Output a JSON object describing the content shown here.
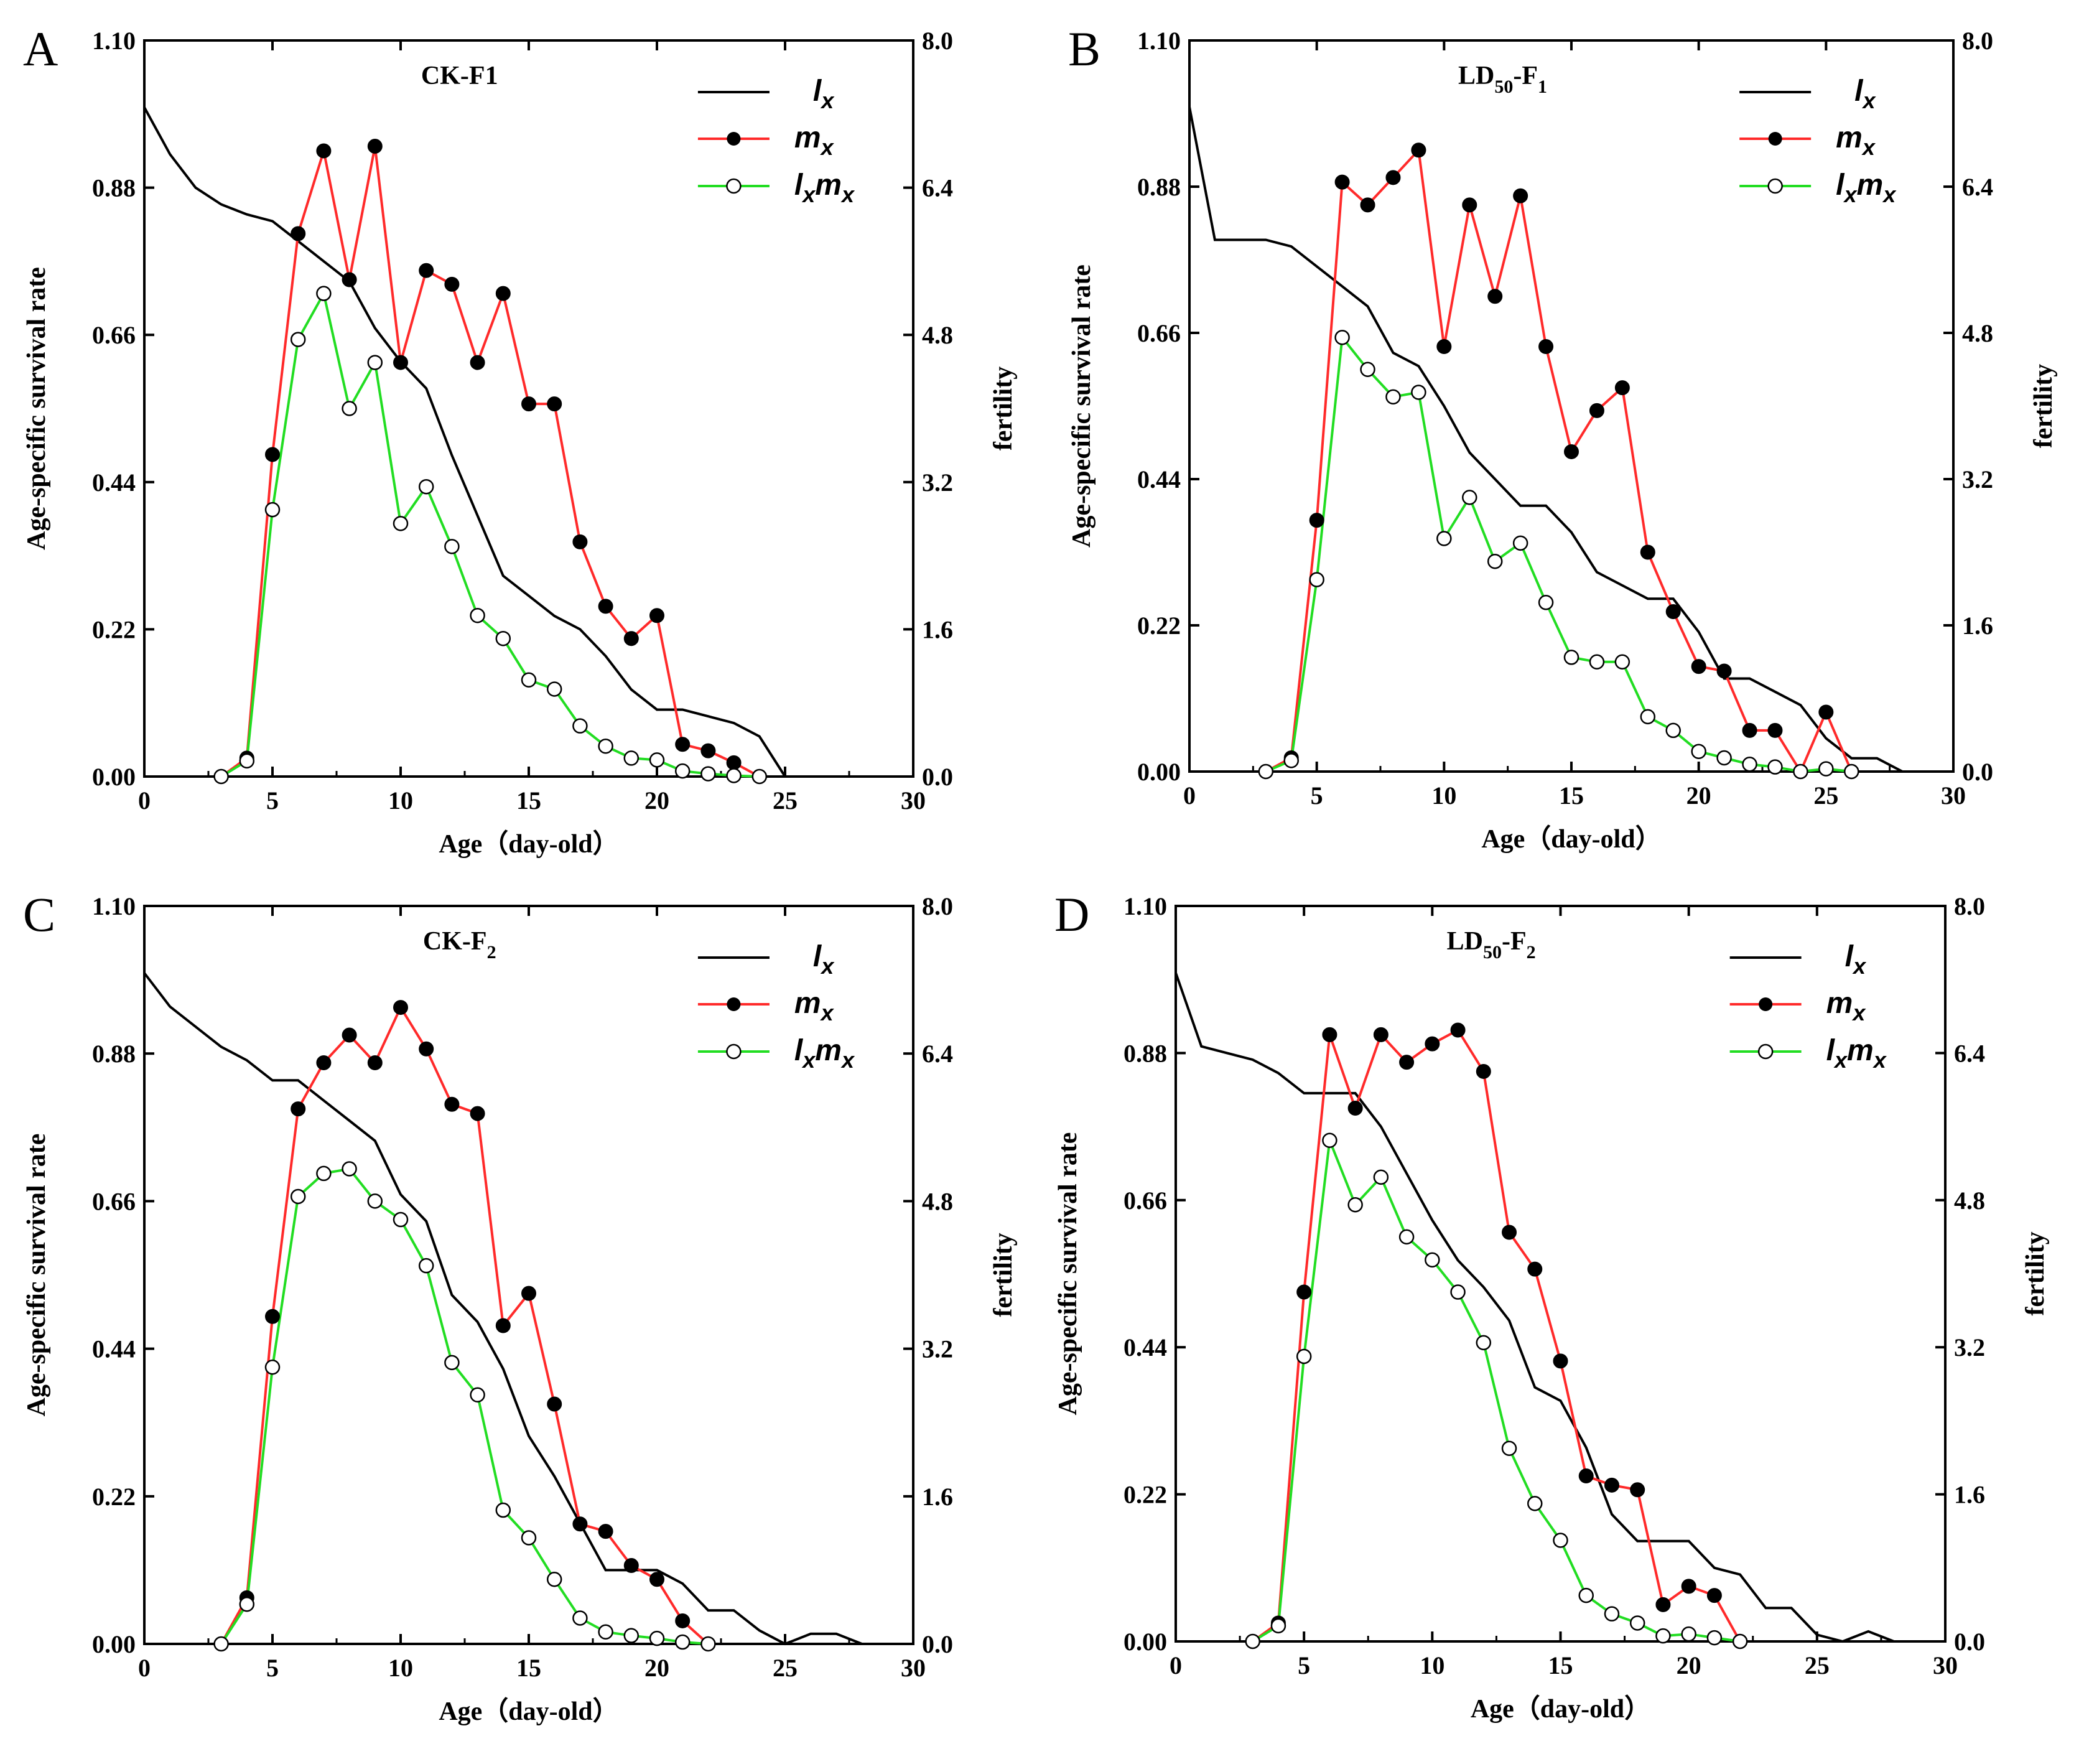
{
  "figure": {
    "x_axis_label": "Age（day-old）",
    "y_left_label": "Age-specific survival rate",
    "y_right_label": "fertility",
    "x_ticks": [
      0,
      5,
      10,
      15,
      20,
      25,
      30
    ],
    "y_left_ticks": [
      "0.00",
      "0.22",
      "0.44",
      "0.66",
      "0.88",
      "1.10"
    ],
    "y_right_ticks": [
      "0.0",
      "1.6",
      "3.2",
      "4.8",
      "6.4",
      "8.0"
    ],
    "colors": {
      "lx": "#000000",
      "mx": "#ff2a2a",
      "lxmx": "#22dd22"
    }
  },
  "chart_data": [
    {
      "type": "line",
      "panel_letter": "A",
      "title": "CK-F",
      "title_sub": "1",
      "title_sub_style": "inline",
      "legend": {
        "lx": "l",
        "lx_sub": "x",
        "mx": "m",
        "mx_sub": "x",
        "lxmx": "l",
        "lxmx_mid": "m",
        "lxmx_sub": "x",
        "placement": "top-right"
      },
      "xlim": [
        0,
        30
      ],
      "ylim_left": [
        0,
        1.1
      ],
      "ylim_right": [
        0,
        8
      ],
      "lx": {
        "x": [
          0,
          1,
          2,
          3,
          4,
          5,
          6,
          7,
          8,
          9,
          10,
          11,
          12,
          13,
          14,
          15,
          16,
          17,
          18,
          19,
          20,
          21,
          22,
          23,
          24,
          25
        ],
        "y": [
          1.0,
          0.93,
          0.88,
          0.855,
          0.84,
          0.83,
          0.8,
          0.77,
          0.74,
          0.67,
          0.62,
          0.58,
          0.48,
          0.39,
          0.3,
          0.27,
          0.24,
          0.22,
          0.18,
          0.13,
          0.1,
          0.1,
          0.09,
          0.08,
          0.06,
          0.0
        ]
      },
      "mx": {
        "x": [
          3,
          4,
          5,
          6,
          7,
          8,
          9,
          10,
          11,
          12,
          13,
          14,
          15,
          16,
          17,
          18,
          19,
          20,
          21,
          22,
          23,
          24
        ],
        "y": [
          0,
          0.2,
          3.5,
          5.9,
          6.8,
          5.4,
          6.85,
          4.5,
          5.5,
          5.35,
          4.5,
          5.25,
          4.05,
          4.05,
          2.55,
          1.85,
          1.5,
          1.75,
          0.35,
          0.28,
          0.15,
          0
        ]
      },
      "lxmx": {
        "x": [
          3,
          4,
          5,
          6,
          7,
          8,
          9,
          10,
          11,
          12,
          13,
          14,
          15,
          16,
          17,
          18,
          19,
          20,
          21,
          22,
          23,
          24
        ],
        "y": [
          0,
          0.17,
          2.9,
          4.75,
          5.25,
          4.0,
          4.5,
          2.75,
          3.15,
          2.5,
          1.75,
          1.5,
          1.05,
          0.95,
          0.55,
          0.33,
          0.2,
          0.18,
          0.06,
          0.03,
          0.01,
          0
        ]
      }
    },
    {
      "type": "line",
      "panel_letter": "B",
      "title": "LD",
      "title_sub": "50",
      "title_tail": "-F",
      "title_sub2": "1",
      "title_sub_style": "sub",
      "legend": {
        "lx": "l",
        "lx_sub": "x",
        "mx": "m",
        "mx_sub": "x",
        "lxmx": "l",
        "lxmx_mid": "m",
        "lxmx_sub": "x",
        "placement": "top-right"
      },
      "xlim": [
        0,
        30
      ],
      "ylim_left": [
        0,
        1.1
      ],
      "ylim_right": [
        0,
        8
      ],
      "lx": {
        "x": [
          0,
          1,
          2,
          3,
          4,
          5,
          6,
          7,
          8,
          9,
          10,
          11,
          12,
          13,
          14,
          15,
          16,
          17,
          18,
          19,
          20,
          21,
          22,
          23,
          24,
          25,
          26,
          27,
          28
        ],
        "y": [
          1.0,
          0.8,
          0.8,
          0.8,
          0.79,
          0.76,
          0.73,
          0.7,
          0.63,
          0.61,
          0.55,
          0.48,
          0.44,
          0.4,
          0.4,
          0.36,
          0.3,
          0.28,
          0.26,
          0.26,
          0.21,
          0.14,
          0.14,
          0.12,
          0.1,
          0.05,
          0.02,
          0.02,
          0.0
        ]
      },
      "mx": {
        "x": [
          3,
          4,
          5,
          6,
          7,
          8,
          9,
          10,
          11,
          12,
          13,
          14,
          15,
          16,
          17,
          18,
          19,
          20,
          21,
          22,
          23,
          24,
          25,
          26
        ],
        "y": [
          0,
          0.15,
          2.75,
          6.45,
          6.2,
          6.5,
          6.8,
          4.65,
          6.2,
          5.2,
          6.3,
          4.65,
          3.5,
          3.95,
          4.2,
          2.4,
          1.75,
          1.15,
          1.1,
          0.45,
          0.45,
          0,
          0.65,
          0
        ]
      },
      "lxmx": {
        "x": [
          3,
          4,
          5,
          6,
          7,
          8,
          9,
          10,
          11,
          12,
          13,
          14,
          15,
          16,
          17,
          18,
          19,
          20,
          21,
          22,
          23,
          24,
          25,
          26
        ],
        "y": [
          0,
          0.12,
          2.1,
          4.75,
          4.4,
          4.1,
          4.15,
          2.55,
          3.0,
          2.3,
          2.5,
          1.85,
          1.25,
          1.2,
          1.2,
          0.6,
          0.45,
          0.22,
          0.15,
          0.08,
          0.05,
          0,
          0.03,
          0
        ]
      }
    },
    {
      "type": "line",
      "panel_letter": "C",
      "title": "CK-F",
      "title_sub": "2",
      "title_sub_style": "sub",
      "legend": {
        "lx": "l",
        "lx_sub": "x",
        "mx": "m",
        "mx_sub": "x",
        "lxmx": "l",
        "lxmx_mid": "m",
        "lxmx_sub": "x",
        "placement": "top-right"
      },
      "xlim": [
        0,
        30
      ],
      "ylim_left": [
        0,
        1.1
      ],
      "ylim_right": [
        0,
        8
      ],
      "lx": {
        "x": [
          0,
          1,
          2,
          3,
          4,
          5,
          6,
          7,
          8,
          9,
          10,
          11,
          12,
          13,
          14,
          15,
          16,
          17,
          18,
          19,
          20,
          21,
          22,
          23,
          24,
          25,
          26,
          27,
          28
        ],
        "y": [
          1.0,
          0.95,
          0.92,
          0.89,
          0.87,
          0.84,
          0.84,
          0.81,
          0.78,
          0.75,
          0.67,
          0.63,
          0.52,
          0.48,
          0.41,
          0.31,
          0.25,
          0.18,
          0.11,
          0.11,
          0.11,
          0.09,
          0.05,
          0.05,
          0.02,
          0.0,
          0.015,
          0.015,
          0.0
        ]
      },
      "mx": {
        "x": [
          3,
          4,
          5,
          6,
          7,
          8,
          9,
          10,
          11,
          12,
          13,
          14,
          15,
          16,
          17,
          18,
          19,
          20,
          21,
          22
        ],
        "y": [
          0,
          0.5,
          3.55,
          5.8,
          6.3,
          6.6,
          6.3,
          6.9,
          6.45,
          5.85,
          5.75,
          3.45,
          3.8,
          2.6,
          1.3,
          1.22,
          0.85,
          0.7,
          0.25,
          0
        ]
      },
      "lxmx": {
        "x": [
          3,
          4,
          5,
          6,
          7,
          8,
          9,
          10,
          11,
          12,
          13,
          14,
          15,
          16,
          17,
          18,
          19,
          20,
          21,
          22
        ],
        "y": [
          0,
          0.43,
          3.0,
          4.85,
          5.1,
          5.15,
          4.8,
          4.6,
          4.1,
          3.05,
          2.7,
          1.45,
          1.15,
          0.7,
          0.28,
          0.13,
          0.09,
          0.06,
          0.02,
          0
        ]
      }
    },
    {
      "type": "line",
      "panel_letter": "D",
      "title": "LD",
      "title_sub": "50",
      "title_tail": "-F",
      "title_sub2": "2",
      "title_sub_style": "sub",
      "legend": {
        "lx": "l",
        "lx_sub": "x",
        "mx": "m",
        "mx_sub": "x",
        "lxmx": "l",
        "lxmx_mid": "m",
        "lxmx_sub": "x",
        "placement": "top-right"
      },
      "xlim": [
        0,
        30
      ],
      "ylim_left": [
        0,
        1.1
      ],
      "ylim_right": [
        0,
        8
      ],
      "lx": {
        "x": [
          0,
          1,
          2,
          3,
          4,
          5,
          6,
          7,
          8,
          9,
          10,
          11,
          12,
          13,
          14,
          15,
          16,
          17,
          18,
          19,
          20,
          21,
          22,
          23,
          24,
          25,
          26,
          27,
          28
        ],
        "y": [
          1.0,
          0.89,
          0.88,
          0.87,
          0.85,
          0.82,
          0.82,
          0.82,
          0.77,
          0.7,
          0.63,
          0.57,
          0.53,
          0.48,
          0.38,
          0.36,
          0.29,
          0.19,
          0.15,
          0.15,
          0.15,
          0.11,
          0.1,
          0.05,
          0.05,
          0.01,
          0.0,
          0.015,
          0.0
        ]
      },
      "mx": {
        "x": [
          3,
          4,
          5,
          6,
          7,
          8,
          9,
          10,
          11,
          12,
          13,
          14,
          15,
          16,
          17,
          18,
          19,
          20,
          21,
          22
        ],
        "y": [
          0,
          0.2,
          3.8,
          6.6,
          5.8,
          6.6,
          6.3,
          6.5,
          6.65,
          6.2,
          4.45,
          4.05,
          3.05,
          1.8,
          1.7,
          1.65,
          0.4,
          0.6,
          0.5,
          0
        ]
      },
      "lxmx": {
        "x": [
          3,
          4,
          5,
          6,
          7,
          8,
          9,
          10,
          11,
          12,
          13,
          14,
          15,
          16,
          17,
          18,
          19,
          20,
          21,
          22
        ],
        "y": [
          0,
          0.17,
          3.1,
          5.45,
          4.75,
          5.05,
          4.4,
          4.15,
          3.8,
          3.25,
          2.1,
          1.5,
          1.1,
          0.5,
          0.3,
          0.2,
          0.06,
          0.08,
          0.04,
          0
        ]
      }
    }
  ]
}
